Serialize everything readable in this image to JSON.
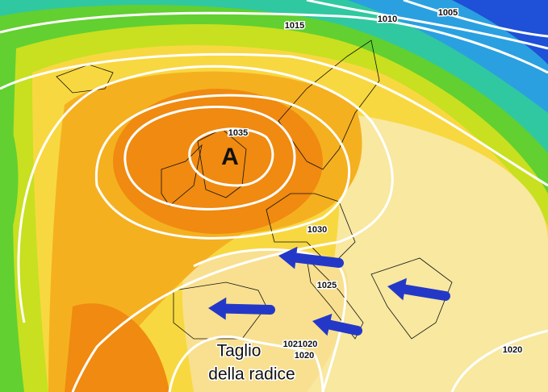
{
  "isobar_labels": [
    "1015",
    "1010",
    "1005",
    "1035",
    "1030",
    "1025",
    "1021020",
    "1020",
    "1020"
  ],
  "high_pressure": "A",
  "annotation": [
    "Taglio",
    "della radice"
  ]
}
